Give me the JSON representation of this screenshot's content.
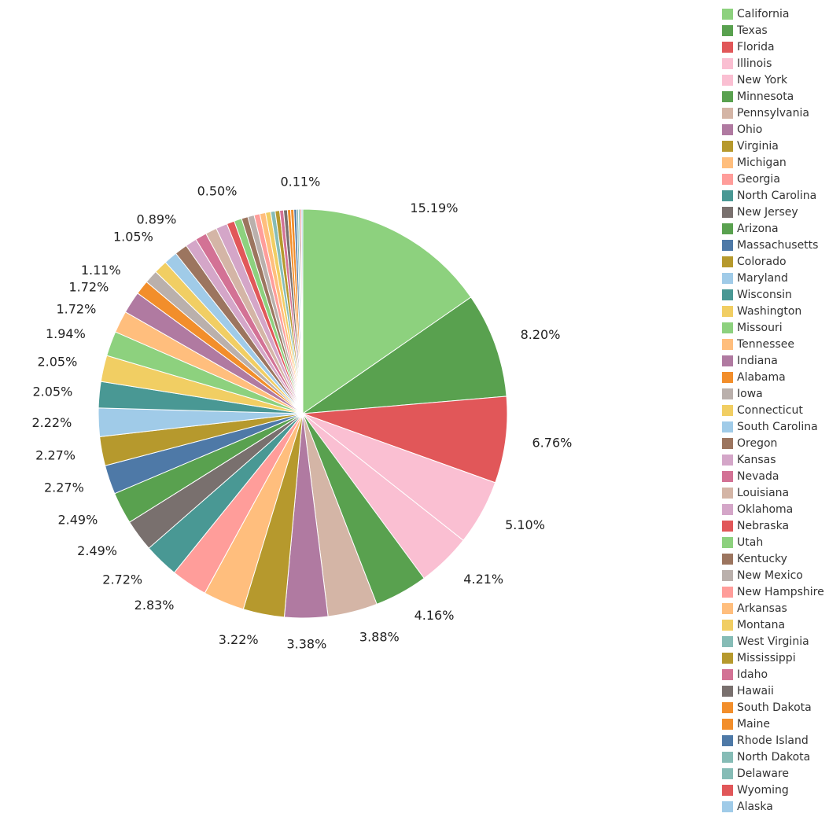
{
  "chart_data": {
    "type": "pie",
    "start_angle": "12 o'clock",
    "direction": "clockwise",
    "legend_position": "right",
    "slices": [
      {
        "name": "California",
        "value": 15.19,
        "label": "15.19%",
        "color": "#8dd17e"
      },
      {
        "name": "Texas",
        "value": 8.2,
        "label": "8.20%",
        "color": "#59a14f"
      },
      {
        "name": "Florida",
        "value": 6.76,
        "label": "6.76%",
        "color": "#e15759"
      },
      {
        "name": "Illinois",
        "value": 5.1,
        "label": "5.10%",
        "color": "#fabfd2"
      },
      {
        "name": "New York",
        "value": 4.21,
        "label": "4.21%",
        "color": "#fabfd2"
      },
      {
        "name": "Minnesota",
        "value": 4.16,
        "label": "4.16%",
        "color": "#59a14f"
      },
      {
        "name": "Pennsylvania",
        "value": 3.88,
        "label": "3.88%",
        "color": "#d4b5a6"
      },
      {
        "name": "Ohio",
        "value": 3.38,
        "label": "3.38%",
        "color": "#b07aa1"
      },
      {
        "name": "Virginia",
        "value": 3.22,
        "label": "3.22%",
        "color": "#b6992d"
      },
      {
        "name": "Michigan",
        "value": 3.22,
        "label": "",
        "color": "#ffbe7d"
      },
      {
        "name": "Georgia",
        "value": 2.83,
        "label": "2.83%",
        "color": "#ff9d9a"
      },
      {
        "name": "North Carolina",
        "value": 2.72,
        "label": "2.72%",
        "color": "#499894"
      },
      {
        "name": "New Jersey",
        "value": 2.49,
        "label": "2.49%",
        "color": "#79706e"
      },
      {
        "name": "Arizona",
        "value": 2.49,
        "label": "2.49%",
        "color": "#59a14f"
      },
      {
        "name": "Massachusetts",
        "value": 2.27,
        "label": "2.27%",
        "color": "#4e79a7"
      },
      {
        "name": "Colorado",
        "value": 2.27,
        "label": "2.27%",
        "color": "#b6992d"
      },
      {
        "name": "Maryland",
        "value": 2.22,
        "label": "2.22%",
        "color": "#a0cbe8"
      },
      {
        "name": "Wisconsin",
        "value": 2.05,
        "label": "2.05%",
        "color": "#499894"
      },
      {
        "name": "Washington",
        "value": 2.05,
        "label": "2.05%",
        "color": "#f1ce63"
      },
      {
        "name": "Missouri",
        "value": 1.94,
        "label": "1.94%",
        "color": "#8dd17e"
      },
      {
        "name": "Tennessee",
        "value": 1.72,
        "label": "1.72%",
        "color": "#ffbe7d"
      },
      {
        "name": "Indiana",
        "value": 1.72,
        "label": "1.72%",
        "color": "#b07aa1"
      },
      {
        "name": "Alabama",
        "value": 1.11,
        "label": "1.11%",
        "color": "#f28e2b"
      },
      {
        "name": "Iowa",
        "value": 1.05,
        "label": "",
        "color": "#bab0ac"
      },
      {
        "name": "Connecticut",
        "value": 1.05,
        "label": "",
        "color": "#f1ce63"
      },
      {
        "name": "South Carolina",
        "value": 1.05,
        "label": "1.05%",
        "color": "#a0cbe8"
      },
      {
        "name": "Oregon",
        "value": 1.0,
        "label": "",
        "color": "#9c755f"
      },
      {
        "name": "Kansas",
        "value": 0.89,
        "label": "0.89%",
        "color": "#d4a6c8"
      },
      {
        "name": "Nevada",
        "value": 0.89,
        "label": "",
        "color": "#d37295"
      },
      {
        "name": "Louisiana",
        "value": 0.89,
        "label": "",
        "color": "#d4b5a6"
      },
      {
        "name": "Oklahoma",
        "value": 0.89,
        "label": "",
        "color": "#d4a6c8"
      },
      {
        "name": "Nebraska",
        "value": 0.6,
        "label": "",
        "color": "#e15759"
      },
      {
        "name": "Utah",
        "value": 0.6,
        "label": "",
        "color": "#8dd17e"
      },
      {
        "name": "Kentucky",
        "value": 0.5,
        "label": "0.50%",
        "color": "#9c755f"
      },
      {
        "name": "New Mexico",
        "value": 0.5,
        "label": "",
        "color": "#bab0ac"
      },
      {
        "name": "New Hampshire",
        "value": 0.45,
        "label": "",
        "color": "#ff9d9a"
      },
      {
        "name": "Arkansas",
        "value": 0.45,
        "label": "",
        "color": "#ffbe7d"
      },
      {
        "name": "Montana",
        "value": 0.4,
        "label": "",
        "color": "#f1ce63"
      },
      {
        "name": "West Virginia",
        "value": 0.35,
        "label": "",
        "color": "#86bcb6"
      },
      {
        "name": "Mississippi",
        "value": 0.35,
        "label": "",
        "color": "#b6992d"
      },
      {
        "name": "Idaho",
        "value": 0.3,
        "label": "",
        "color": "#d37295"
      },
      {
        "name": "Hawaii",
        "value": 0.3,
        "label": "",
        "color": "#79706e"
      },
      {
        "name": "South Dakota",
        "value": 0.25,
        "label": "",
        "color": "#f28e2b"
      },
      {
        "name": "Maine",
        "value": 0.25,
        "label": "",
        "color": "#f28e2b"
      },
      {
        "name": "Rhode Island",
        "value": 0.2,
        "label": "",
        "color": "#4e79a7"
      },
      {
        "name": "North Dakota",
        "value": 0.15,
        "label": "",
        "color": "#86bcb6"
      },
      {
        "name": "Delaware",
        "value": 0.12,
        "label": "",
        "color": "#86bcb6"
      },
      {
        "name": "Wyoming",
        "value": 0.11,
        "label": "0.11%",
        "color": "#e15759"
      },
      {
        "name": "Alaska",
        "value": 0.11,
        "label": "",
        "color": "#a0cbe8"
      }
    ]
  }
}
